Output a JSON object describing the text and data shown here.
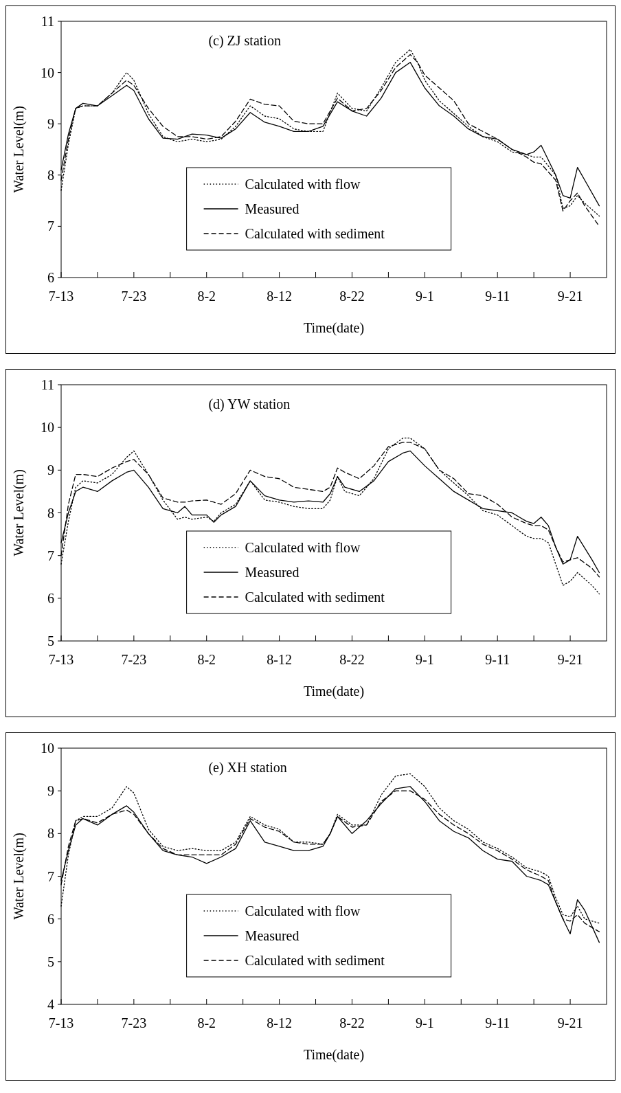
{
  "chart_data": [
    {
      "type": "line",
      "title": "(c) ZJ station",
      "xlabel": "Time(date)",
      "ylabel": "Water Level(m)",
      "ylim": [
        6,
        11
      ],
      "yticks": [
        6,
        7,
        8,
        9,
        10,
        11
      ],
      "xlim": [
        "--07-13",
        "--09-26"
      ],
      "xticks": [
        {
          "value": "--07-13",
          "label": "7-13"
        },
        {
          "value": "--07-18",
          "label": null
        },
        {
          "value": "--07-23",
          "label": "7-23"
        },
        {
          "value": "--07-28",
          "label": null
        },
        {
          "value": "--08-02",
          "label": "8-2"
        },
        {
          "value": "--08-07",
          "label": null
        },
        {
          "value": "--08-12",
          "label": "8-12"
        },
        {
          "value": "--08-17",
          "label": null
        },
        {
          "value": "--08-22",
          "label": "8-22"
        },
        {
          "value": "--08-27",
          "label": null
        },
        {
          "value": "--09-01",
          "label": "9-1"
        },
        {
          "value": "--09-06",
          "label": null
        },
        {
          "value": "--09-11",
          "label": "9-11"
        },
        {
          "value": "--09-16",
          "label": null
        },
        {
          "value": "--09-21",
          "label": "9-21"
        }
      ],
      "grid": false,
      "legend": "bottom",
      "marker": "none",
      "x": [
        "--07-13",
        "--07-14",
        "--07-15",
        "--07-16",
        "--07-18",
        "--07-20",
        "--07-22",
        "--07-23",
        "--07-25",
        "--07-27",
        "--07-29",
        "--07-31",
        "--08-02",
        "--08-04",
        "--08-06",
        "--08-08",
        "--08-10",
        "--08-12",
        "--08-14",
        "--08-16",
        "--08-18",
        "--08-20",
        "--08-22",
        "--08-24",
        "--08-26",
        "--08-28",
        "--08-30",
        "--08-31",
        "--09-01",
        "--09-03",
        "--09-05",
        "--09-07",
        "--09-09",
        "--09-11",
        "--09-13",
        "--09-15",
        "--09-16",
        "--09-17",
        "--09-19",
        "--09-20",
        "--09-21",
        "--09-22",
        "--09-23",
        "--09-25"
      ],
      "series": [
        {
          "name": "Calculated with flow",
          "color": "#000000",
          "line_style": "dotted",
          "values": [
            7.7,
            8.6,
            9.3,
            9.35,
            9.35,
            9.6,
            10.0,
            9.85,
            9.2,
            8.75,
            8.65,
            8.7,
            8.65,
            8.7,
            8.95,
            9.35,
            9.15,
            9.1,
            8.9,
            8.85,
            8.85,
            9.6,
            9.3,
            9.25,
            9.7,
            10.2,
            10.45,
            10.2,
            9.85,
            9.45,
            9.2,
            8.95,
            8.75,
            8.65,
            8.45,
            8.4,
            8.35,
            8.35,
            8.0,
            7.35,
            7.4,
            7.6,
            7.45,
            7.2
          ]
        },
        {
          "name": "Measured",
          "color": "#000000",
          "line_style": "solid",
          "values": [
            8.1,
            8.8,
            9.3,
            9.4,
            9.35,
            9.55,
            9.75,
            9.65,
            9.1,
            8.72,
            8.7,
            8.8,
            8.78,
            8.72,
            8.9,
            9.22,
            9.03,
            8.95,
            8.85,
            8.85,
            8.95,
            9.43,
            9.25,
            9.15,
            9.5,
            10.0,
            10.2,
            9.95,
            9.7,
            9.35,
            9.15,
            8.9,
            8.75,
            8.7,
            8.5,
            8.4,
            8.45,
            8.58,
            8.0,
            7.6,
            7.55,
            8.15,
            7.9,
            7.4
          ]
        },
        {
          "name": "Calculated with sediment",
          "color": "#000000",
          "line_style": "dashed",
          "values": [
            7.9,
            8.7,
            9.3,
            9.35,
            9.35,
            9.6,
            9.85,
            9.75,
            9.3,
            8.95,
            8.75,
            8.75,
            8.7,
            8.75,
            9.05,
            9.48,
            9.38,
            9.35,
            9.05,
            9.0,
            9.0,
            9.5,
            9.25,
            9.3,
            9.65,
            10.1,
            10.35,
            10.2,
            9.95,
            9.7,
            9.45,
            9.0,
            8.85,
            8.7,
            8.5,
            8.35,
            8.25,
            8.22,
            7.9,
            7.3,
            7.5,
            7.65,
            7.4,
            7.0
          ]
        }
      ]
    },
    {
      "type": "line",
      "title": "(d) YW station",
      "xlabel": "Time(date)",
      "ylabel": "Water Level(m)",
      "ylim": [
        5,
        11
      ],
      "yticks": [
        5,
        6,
        7,
        8,
        9,
        10,
        11
      ],
      "xlim": [
        "--07-13",
        "--09-26"
      ],
      "xticks": [
        {
          "value": "--07-13",
          "label": "7-13"
        },
        {
          "value": "--07-18",
          "label": null
        },
        {
          "value": "--07-23",
          "label": "7-23"
        },
        {
          "value": "--07-28",
          "label": null
        },
        {
          "value": "--08-02",
          "label": "8-2"
        },
        {
          "value": "--08-07",
          "label": null
        },
        {
          "value": "--08-12",
          "label": "8-12"
        },
        {
          "value": "--08-17",
          "label": null
        },
        {
          "value": "--08-22",
          "label": "8-22"
        },
        {
          "value": "--08-27",
          "label": null
        },
        {
          "value": "--09-01",
          "label": "9-1"
        },
        {
          "value": "--09-06",
          "label": null
        },
        {
          "value": "--09-11",
          "label": "9-11"
        },
        {
          "value": "--09-16",
          "label": null
        },
        {
          "value": "--09-21",
          "label": "9-21"
        }
      ],
      "grid": false,
      "legend": "bottom",
      "marker": "none",
      "x": [
        "--07-13",
        "--07-14",
        "--07-15",
        "--07-16",
        "--07-18",
        "--07-20",
        "--07-22",
        "--07-23",
        "--07-25",
        "--07-27",
        "--07-29",
        "--07-30",
        "--07-31",
        "--08-02",
        "--08-03",
        "--08-04",
        "--08-06",
        "--08-08",
        "--08-10",
        "--08-12",
        "--08-14",
        "--08-16",
        "--08-18",
        "--08-19",
        "--08-20",
        "--08-21",
        "--08-23",
        "--08-25",
        "--08-27",
        "--08-29",
        "--08-30",
        "--09-01",
        "--09-03",
        "--09-05",
        "--09-07",
        "--09-09",
        "--09-11",
        "--09-13",
        "--09-15",
        "--09-16",
        "--09-17",
        "--09-18",
        "--09-19",
        "--09-20",
        "--09-21",
        "--09-22",
        "--09-24",
        "--09-25"
      ],
      "series": [
        {
          "name": "Calculated with flow",
          "color": "#000000",
          "line_style": "dotted",
          "values": [
            6.8,
            7.8,
            8.6,
            8.75,
            8.7,
            8.9,
            9.3,
            9.45,
            8.9,
            8.3,
            7.85,
            7.9,
            7.85,
            7.9,
            7.8,
            8.0,
            8.2,
            8.75,
            8.3,
            8.25,
            8.15,
            8.1,
            8.1,
            8.3,
            8.85,
            8.5,
            8.4,
            8.8,
            9.5,
            9.75,
            9.75,
            9.5,
            9.0,
            8.7,
            8.4,
            8.05,
            7.95,
            7.7,
            7.45,
            7.4,
            7.4,
            7.3,
            6.8,
            6.3,
            6.4,
            6.6,
            6.3,
            6.1
          ]
        },
        {
          "name": "Measured",
          "color": "#000000",
          "line_style": "solid",
          "values": [
            7.3,
            8.0,
            8.5,
            8.6,
            8.5,
            8.75,
            8.95,
            9.0,
            8.6,
            8.1,
            8.0,
            8.15,
            7.95,
            7.95,
            7.78,
            7.95,
            8.15,
            8.75,
            8.4,
            8.3,
            8.25,
            8.28,
            8.25,
            8.45,
            8.85,
            8.6,
            8.5,
            8.75,
            9.2,
            9.4,
            9.45,
            9.1,
            8.8,
            8.5,
            8.3,
            8.1,
            8.05,
            8.0,
            7.8,
            7.75,
            7.9,
            7.7,
            7.2,
            6.8,
            6.9,
            7.45,
            6.9,
            6.6
          ]
        },
        {
          "name": "Calculated with sediment",
          "color": "#000000",
          "line_style": "dashed",
          "values": [
            7.0,
            8.2,
            8.9,
            8.9,
            8.85,
            9.05,
            9.2,
            9.25,
            8.9,
            8.35,
            8.25,
            8.25,
            8.28,
            8.3,
            8.25,
            8.2,
            8.45,
            9.0,
            8.85,
            8.8,
            8.6,
            8.55,
            8.5,
            8.6,
            9.05,
            8.95,
            8.8,
            9.1,
            9.55,
            9.65,
            9.65,
            9.5,
            9.0,
            8.8,
            8.45,
            8.4,
            8.2,
            7.9,
            7.75,
            7.7,
            7.7,
            7.6,
            7.2,
            6.85,
            6.9,
            6.95,
            6.7,
            6.5
          ]
        }
      ]
    },
    {
      "type": "line",
      "title": "(e) XH station",
      "xlabel": "Time(date)",
      "ylabel": "Water Level(m)",
      "ylim": [
        4,
        10
      ],
      "yticks": [
        4,
        5,
        6,
        7,
        8,
        9,
        10
      ],
      "xlim": [
        "--07-13",
        "--09-26"
      ],
      "xticks": [
        {
          "value": "--07-13",
          "label": "7-13"
        },
        {
          "value": "--07-18",
          "label": null
        },
        {
          "value": "--07-23",
          "label": "7-23"
        },
        {
          "value": "--07-28",
          "label": null
        },
        {
          "value": "--08-02",
          "label": "8-2"
        },
        {
          "value": "--08-07",
          "label": null
        },
        {
          "value": "--08-12",
          "label": "8-12"
        },
        {
          "value": "--08-17",
          "label": null
        },
        {
          "value": "--08-22",
          "label": "8-22"
        },
        {
          "value": "--08-27",
          "label": null
        },
        {
          "value": "--09-01",
          "label": "9-1"
        },
        {
          "value": "--09-06",
          "label": null
        },
        {
          "value": "--09-11",
          "label": "9-11"
        },
        {
          "value": "--09-16",
          "label": null
        },
        {
          "value": "--09-21",
          "label": "9-21"
        }
      ],
      "grid": false,
      "legend": "bottom",
      "marker": "none",
      "x": [
        "--07-13",
        "--07-14",
        "--07-15",
        "--07-16",
        "--07-18",
        "--07-20",
        "--07-22",
        "--07-23",
        "--07-25",
        "--07-27",
        "--07-29",
        "--07-31",
        "--08-02",
        "--08-04",
        "--08-06",
        "--08-08",
        "--08-10",
        "--08-12",
        "--08-14",
        "--08-16",
        "--08-18",
        "--08-19",
        "--08-20",
        "--08-22",
        "--08-24",
        "--08-26",
        "--08-28",
        "--08-30",
        "--09-01",
        "--09-03",
        "--09-05",
        "--09-07",
        "--09-09",
        "--09-11",
        "--09-13",
        "--09-15",
        "--09-17",
        "--09-18",
        "--09-19",
        "--09-20",
        "--09-21",
        "--09-22",
        "--09-23",
        "--09-25"
      ],
      "series": [
        {
          "name": "Calculated with flow",
          "color": "#000000",
          "line_style": "dotted",
          "values": [
            6.3,
            7.5,
            8.3,
            8.4,
            8.4,
            8.6,
            9.1,
            8.95,
            8.1,
            7.7,
            7.6,
            7.65,
            7.6,
            7.6,
            7.8,
            8.4,
            8.2,
            8.1,
            7.8,
            7.8,
            7.75,
            8.0,
            8.45,
            8.2,
            8.2,
            8.9,
            9.35,
            9.4,
            9.1,
            8.6,
            8.3,
            8.1,
            7.8,
            7.65,
            7.45,
            7.2,
            7.1,
            7.0,
            6.5,
            6.1,
            6.05,
            6.3,
            6.0,
            5.9
          ]
        },
        {
          "name": "Measured",
          "color": "#000000",
          "line_style": "solid",
          "values": [
            6.9,
            7.6,
            8.2,
            8.35,
            8.2,
            8.45,
            8.65,
            8.5,
            8.0,
            7.6,
            7.5,
            7.45,
            7.3,
            7.45,
            7.65,
            8.3,
            7.8,
            7.7,
            7.6,
            7.6,
            7.7,
            8.0,
            8.4,
            8.0,
            8.3,
            8.7,
            9.05,
            9.1,
            8.75,
            8.3,
            8.05,
            7.9,
            7.6,
            7.4,
            7.35,
            7.0,
            6.9,
            6.8,
            6.4,
            6.0,
            5.65,
            6.45,
            6.2,
            5.45
          ]
        },
        {
          "name": "Calculated with sediment",
          "color": "#000000",
          "line_style": "dashed",
          "values": [
            6.8,
            7.7,
            8.3,
            8.35,
            8.25,
            8.45,
            8.55,
            8.45,
            8.0,
            7.65,
            7.5,
            7.5,
            7.5,
            7.5,
            7.75,
            8.35,
            8.15,
            8.05,
            7.8,
            7.75,
            7.75,
            8.0,
            8.4,
            8.15,
            8.2,
            8.75,
            9.0,
            9.0,
            8.8,
            8.45,
            8.2,
            8.0,
            7.75,
            7.6,
            7.4,
            7.15,
            7.0,
            6.9,
            6.4,
            6.0,
            5.95,
            6.1,
            5.9,
            5.7
          ]
        }
      ]
    }
  ]
}
